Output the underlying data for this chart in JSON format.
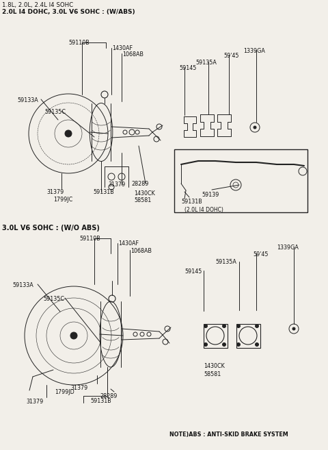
{
  "title_line1": "1.8L, 2.0L, 2.4L I4 SOHC",
  "title_line2": "2.0L I4 DOHC, 3.0L V6 SOHC : (W/ABS)",
  "section2_title": "3.0L V6 SOHC : (W/O ABS)",
  "note_text": "NOTE)ABS : ANTI-SKID BRAKE SYSTEM",
  "bg_color": "#f2efe9",
  "line_color": "#222222",
  "text_color": "#111111",
  "lfs": 5.8,
  "tfs": 6.5,
  "sfs": 7.0
}
